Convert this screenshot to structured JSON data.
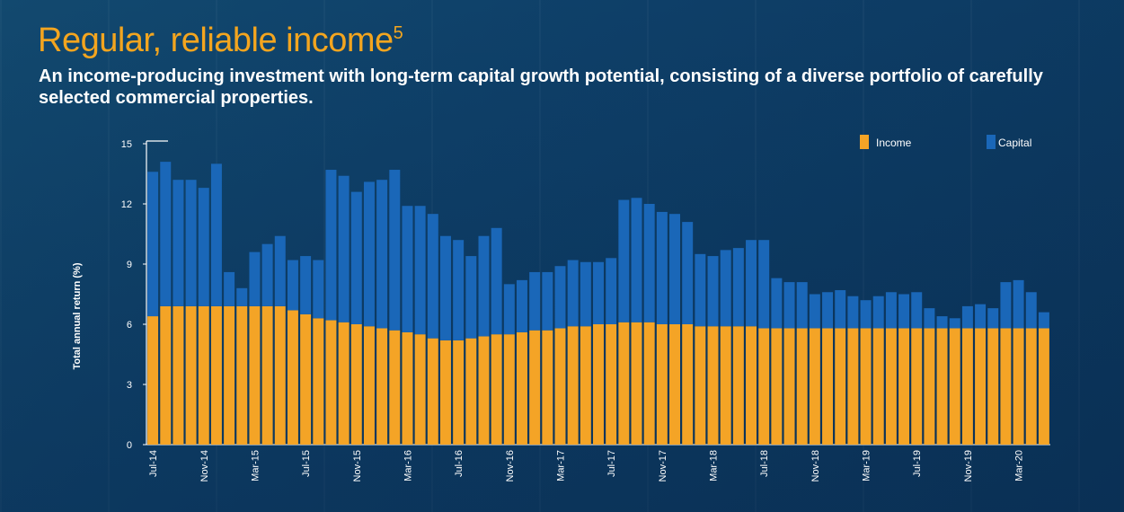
{
  "header": {
    "title": "Regular, reliable income",
    "title_superscript": "5",
    "subtitle": "An income-producing investment with long-term capital growth potential, consisting of a diverse portfolio of carefully selected commercial properties."
  },
  "colors": {
    "income": "#f4a426",
    "capital": "#1a67b8",
    "title": "#f3a51f",
    "text": "#ffffff"
  },
  "chart_data": {
    "type": "bar",
    "stacked": true,
    "ylabel": "Total annual return (%)",
    "ylim": [
      0,
      15
    ],
    "yticks": [
      "0",
      "3",
      "6",
      "9",
      "12",
      "15"
    ],
    "xticks": [
      "Jul-14",
      "Nov-14",
      "Mar-15",
      "Jul-15",
      "Nov-15",
      "Mar-16",
      "Jul-16",
      "Nov-16",
      "Mar-17",
      "Jul-17",
      "Nov-17",
      "Mar-18",
      "Jul-18",
      "Nov-18",
      "Mar-19",
      "Jul-19",
      "Nov-19",
      "Mar-20"
    ],
    "xtick_every": 4,
    "legend_position": "top-right",
    "series": [
      {
        "name": "Income",
        "values": [
          6.4,
          6.9,
          6.9,
          6.9,
          6.9,
          6.9,
          6.9,
          6.9,
          6.9,
          6.9,
          6.9,
          6.7,
          6.5,
          6.3,
          6.2,
          6.1,
          6.0,
          5.9,
          5.8,
          5.7,
          5.6,
          5.5,
          5.3,
          5.2,
          5.2,
          5.3,
          5.4,
          5.5,
          5.5,
          5.6,
          5.7,
          5.7,
          5.8,
          5.9,
          5.9,
          6.0,
          6.0,
          6.1,
          6.1,
          6.1,
          6.0,
          6.0,
          6.0,
          5.9,
          5.9,
          5.9,
          5.9,
          5.9,
          5.8,
          5.8,
          5.8,
          5.8,
          5.8,
          5.8,
          5.8,
          5.8,
          5.8,
          5.8,
          5.8,
          5.8,
          5.8,
          5.8,
          5.8,
          5.8,
          5.8,
          5.8,
          5.8,
          5.8,
          5.8,
          5.8,
          5.8
        ]
      },
      {
        "name": "Capital",
        "values": [
          7.2,
          7.2,
          6.3,
          6.3,
          5.9,
          7.1,
          1.7,
          0.9,
          2.7,
          3.1,
          3.5,
          2.5,
          2.9,
          2.9,
          7.5,
          7.3,
          6.6,
          7.2,
          7.4,
          8.0,
          6.3,
          6.4,
          6.2,
          5.2,
          5.0,
          4.1,
          5.0,
          5.3,
          2.5,
          2.6,
          2.9,
          2.9,
          3.1,
          3.3,
          3.2,
          3.1,
          3.3,
          6.1,
          6.2,
          5.9,
          5.6,
          5.5,
          5.1,
          3.6,
          3.5,
          3.8,
          3.9,
          4.3,
          4.4,
          2.5,
          2.3,
          2.3,
          1.7,
          1.8,
          1.9,
          1.6,
          1.4,
          1.6,
          1.8,
          1.7,
          1.8,
          1.0,
          0.6,
          0.5,
          1.1,
          1.2,
          1.0,
          2.3,
          2.4,
          1.8,
          0.8
        ]
      }
    ]
  }
}
